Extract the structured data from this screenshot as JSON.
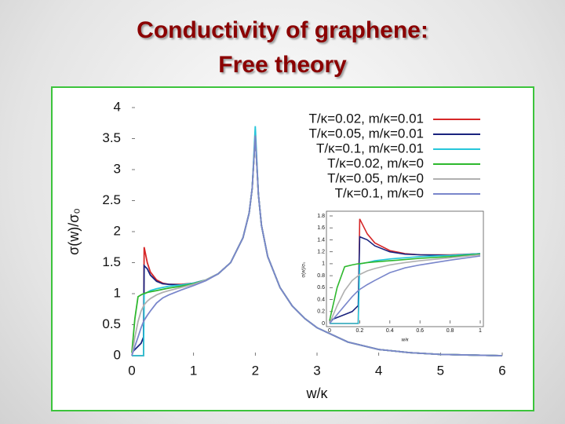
{
  "slide": {
    "title": "Conductivity of graphene:",
    "subtitle": "Free theory"
  },
  "chart_data": [
    {
      "type": "line",
      "x_label": "w/κ",
      "y_label": "σ(w)/σ₀",
      "x": [
        0,
        0.05,
        0.1,
        0.15,
        0.19,
        0.2,
        0.25,
        0.3,
        0.4,
        0.5,
        0.6,
        0.8,
        1,
        1.2,
        1.4,
        1.6,
        1.8,
        1.9,
        1.95,
        2,
        2.05,
        2.1,
        2.2,
        2.4,
        2.6,
        2.8,
        3,
        3.5,
        4,
        4.5,
        5,
        5.5,
        6
      ],
      "xlim": [
        0,
        6
      ],
      "xticks": [
        0,
        1,
        2,
        3,
        4,
        5,
        6
      ],
      "ylim": [
        0,
        4
      ],
      "yticks": [
        0,
        0.5,
        1,
        1.5,
        2,
        2.5,
        3,
        3.5,
        4
      ],
      "series": [
        {
          "name": "T/κ=0.02, m/κ=0.01",
          "color": "#d62728",
          "values": [
            0,
            0,
            0,
            0,
            0,
            1.75,
            1.5,
            1.35,
            1.22,
            1.17,
            1.15,
            1.15,
            1.17,
            1.22,
            1.32,
            1.5,
            1.9,
            2.3,
            2.7,
            3.55,
            2.6,
            2.1,
            1.6,
            1.1,
            0.8,
            0.6,
            0.45,
            0.22,
            0.1,
            0.05,
            0.02,
            0.01,
            0
          ]
        },
        {
          "name": "T/κ=0.05, m/κ=0.01",
          "color": "#1a237e",
          "values": [
            0.05,
            0.1,
            0.15,
            0.2,
            0.3,
            1.45,
            1.4,
            1.3,
            1.2,
            1.16,
            1.15,
            1.14,
            1.17,
            1.22,
            1.32,
            1.5,
            1.9,
            2.3,
            2.7,
            3.55,
            2.6,
            2.1,
            1.6,
            1.1,
            0.8,
            0.6,
            0.45,
            0.22,
            0.1,
            0.05,
            0.02,
            0.01,
            0
          ]
        },
        {
          "name": "T/κ=0.1,  m/κ=0.01",
          "color": "#26c6da",
          "values": [
            0,
            0,
            0,
            0,
            0,
            1.0,
            1.02,
            1.05,
            1.08,
            1.1,
            1.12,
            1.14,
            1.17,
            1.22,
            1.32,
            1.5,
            1.9,
            2.3,
            2.7,
            3.7,
            2.6,
            2.1,
            1.6,
            1.1,
            0.8,
            0.6,
            0.45,
            0.22,
            0.1,
            0.05,
            0.02,
            0.01,
            0
          ]
        },
        {
          "name": "T/κ=0.02, m/κ=0",
          "color": "#2eb82e",
          "values": [
            0.05,
            0.6,
            0.95,
            0.98,
            1.0,
            1.0,
            1.02,
            1.03,
            1.05,
            1.07,
            1.09,
            1.12,
            1.16,
            1.22,
            1.32,
            1.5,
            1.9,
            2.3,
            2.7,
            3.55,
            2.6,
            2.1,
            1.6,
            1.1,
            0.8,
            0.6,
            0.45,
            0.22,
            0.1,
            0.05,
            0.02,
            0.01,
            0
          ]
        },
        {
          "name": "T/κ=0.05, m/κ=0",
          "color": "#b0b0b0",
          "values": [
            0,
            0.3,
            0.55,
            0.72,
            0.8,
            0.82,
            0.88,
            0.92,
            0.98,
            1.02,
            1.05,
            1.1,
            1.15,
            1.22,
            1.32,
            1.5,
            1.9,
            2.3,
            2.7,
            3.55,
            2.6,
            2.1,
            1.6,
            1.1,
            0.8,
            0.6,
            0.45,
            0.22,
            0.1,
            0.05,
            0.02,
            0.01,
            0
          ]
        },
        {
          "name": "T/κ=0.1,  m/κ=0",
          "color": "#7986cb",
          "values": [
            0,
            0.15,
            0.3,
            0.45,
            0.55,
            0.57,
            0.65,
            0.72,
            0.85,
            0.93,
            0.98,
            1.06,
            1.13,
            1.21,
            1.32,
            1.5,
            1.9,
            2.3,
            2.7,
            3.55,
            2.6,
            2.1,
            1.6,
            1.1,
            0.8,
            0.6,
            0.45,
            0.22,
            0.1,
            0.05,
            0.02,
            0.01,
            0
          ]
        }
      ]
    },
    {
      "type": "line",
      "x_label": "w/κ",
      "y_label": "σ(w)/σ₀",
      "x": [
        0,
        0.05,
        0.1,
        0.15,
        0.19,
        0.2,
        0.25,
        0.3,
        0.4,
        0.5,
        0.6,
        0.8,
        1
      ],
      "xlim": [
        0,
        1
      ],
      "xticks": [
        0,
        0.2,
        0.4,
        0.6,
        0.8,
        1
      ],
      "ylim": [
        0,
        1.8
      ],
      "yticks": [
        0,
        0.2,
        0.4,
        0.6,
        0.8,
        1,
        1.2,
        1.4,
        1.6,
        1.8
      ],
      "series": [
        {
          "color": "#d62728",
          "values": [
            0,
            0,
            0,
            0,
            0,
            1.75,
            1.5,
            1.35,
            1.22,
            1.17,
            1.15,
            1.15,
            1.17
          ]
        },
        {
          "color": "#1a237e",
          "values": [
            0.05,
            0.1,
            0.15,
            0.2,
            0.3,
            1.45,
            1.4,
            1.3,
            1.2,
            1.16,
            1.15,
            1.14,
            1.17
          ]
        },
        {
          "color": "#26c6da",
          "values": [
            0,
            0,
            0,
            0,
            0,
            1.0,
            1.02,
            1.05,
            1.08,
            1.1,
            1.12,
            1.14,
            1.17
          ]
        },
        {
          "color": "#2eb82e",
          "values": [
            0.05,
            0.6,
            0.95,
            0.98,
            1.0,
            1.0,
            1.02,
            1.03,
            1.05,
            1.07,
            1.09,
            1.12,
            1.16
          ]
        },
        {
          "color": "#b0b0b0",
          "values": [
            0,
            0.3,
            0.55,
            0.72,
            0.8,
            0.82,
            0.88,
            0.92,
            0.98,
            1.02,
            1.05,
            1.1,
            1.15
          ]
        },
        {
          "color": "#7986cb",
          "values": [
            0,
            0.15,
            0.3,
            0.45,
            0.55,
            0.57,
            0.65,
            0.72,
            0.85,
            0.93,
            0.98,
            1.06,
            1.13
          ]
        }
      ]
    }
  ]
}
